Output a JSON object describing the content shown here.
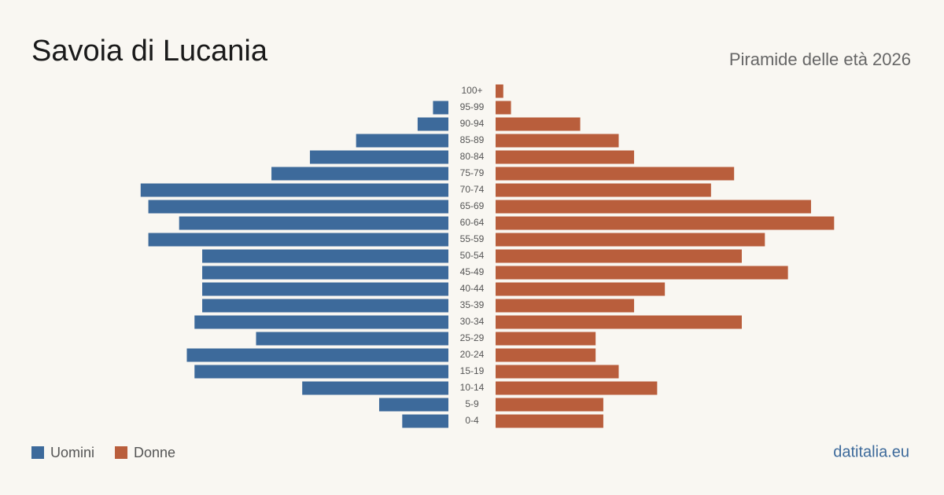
{
  "chart_data": {
    "type": "pyramid",
    "title": "Savoia di Lucania",
    "subtitle": "Piramide delle età 2026",
    "source": "datitalia.eu",
    "categories": [
      "100+",
      "95-99",
      "90-94",
      "85-89",
      "80-84",
      "75-79",
      "70-74",
      "65-69",
      "60-64",
      "55-59",
      "50-54",
      "45-49",
      "40-44",
      "35-39",
      "30-34",
      "25-29",
      "20-24",
      "15-19",
      "10-14",
      "5-9",
      "0-4"
    ],
    "series": [
      {
        "name": "Uomini",
        "color": "#3d6a9b",
        "values": [
          0,
          2,
          4,
          12,
          18,
          23,
          40,
          39,
          35,
          39,
          32,
          32,
          32,
          32,
          33,
          25,
          34,
          33,
          19,
          9,
          6
        ]
      },
      {
        "name": "Donne",
        "color": "#b95e3c",
        "values": [
          1,
          2,
          11,
          16,
          18,
          31,
          28,
          41,
          44,
          35,
          32,
          38,
          22,
          18,
          32,
          13,
          13,
          16,
          21,
          14,
          14
        ]
      }
    ]
  }
}
